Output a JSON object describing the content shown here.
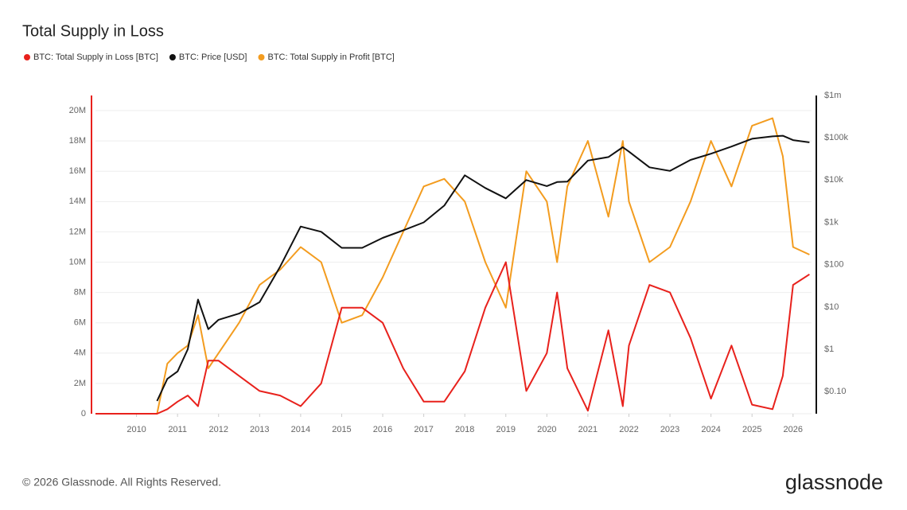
{
  "chart_data": {
    "type": "line",
    "title": "Total Supply in Loss",
    "footer": "© 2026 Glassnode. All Rights Reserved.",
    "brand": "glassnode",
    "x": [
      2009,
      2010.5,
      2010.75,
      2011,
      2011.25,
      2011.5,
      2011.75,
      2012,
      2012.5,
      2013,
      2013.5,
      2014,
      2014.5,
      2015,
      2015.5,
      2016,
      2016.5,
      2017,
      2017.5,
      2018,
      2018.5,
      2019,
      2019.5,
      2020,
      2020.25,
      2020.5,
      2021,
      2021.5,
      2021.85,
      2022,
      2022.5,
      2023,
      2023.5,
      2024,
      2024.5,
      2025,
      2025.5,
      2025.75,
      2026,
      2026.4
    ],
    "xlim": [
      2009,
      2026.45
    ],
    "xticks": [
      2010,
      2011,
      2012,
      2013,
      2014,
      2015,
      2016,
      2017,
      2018,
      2019,
      2020,
      2021,
      2022,
      2023,
      2024,
      2025,
      2026
    ],
    "ylim": [
      0,
      21000000
    ],
    "yticks": [
      0,
      {
        "value": 2000000,
        "label": "2M"
      },
      {
        "value": 4000000,
        "label": "4M"
      },
      {
        "value": 6000000,
        "label": "6M"
      },
      {
        "value": 8000000,
        "label": "8M"
      },
      {
        "value": 10000000,
        "label": "10M"
      },
      {
        "value": 12000000,
        "label": "12M"
      },
      {
        "value": 14000000,
        "label": "14M"
      },
      {
        "value": 16000000,
        "label": "16M"
      },
      {
        "value": 18000000,
        "label": "18M"
      },
      {
        "value": 20000000,
        "label": "20M"
      }
    ],
    "y2lim": [
      0.03,
      1000000
    ],
    "y2log": true,
    "y2ticks": [
      {
        "value": 0.1,
        "label": "$0.10"
      },
      {
        "value": 1,
        "label": "$1"
      },
      {
        "value": 10,
        "label": "$10"
      },
      {
        "value": 100,
        "label": "$100"
      },
      {
        "value": 1000,
        "label": "$1k"
      },
      {
        "value": 10000,
        "label": "$10k"
      },
      {
        "value": 100000,
        "label": "$100k"
      },
      {
        "value": 1000000,
        "label": "$1m"
      }
    ],
    "grid": true,
    "series": [
      {
        "name": "BTC: Total Supply in Profit [BTC]",
        "color": "#f39c1f",
        "values": [
          0,
          0,
          3300000,
          4000000,
          4500000,
          6500000,
          3000000,
          4000000,
          6000000,
          8500000,
          9500000,
          11000000,
          10000000,
          6000000,
          6500000,
          9000000,
          12000000,
          15000000,
          15500000,
          14000000,
          10000000,
          7000000,
          16000000,
          14000000,
          10000000,
          15000000,
          18000000,
          13000000,
          18000000,
          14000000,
          10000000,
          11000000,
          14000000,
          18000000,
          15000000,
          19000000,
          19500000,
          17000000,
          11000000,
          10500000
        ]
      },
      {
        "name": "BTC: Total Supply in Loss [BTC]",
        "color": "#e8211c",
        "values": [
          0,
          0,
          300000,
          800000,
          1200000,
          500000,
          3500000,
          3500000,
          2500000,
          1500000,
          1200000,
          500000,
          2000000,
          7000000,
          7000000,
          6000000,
          3000000,
          800000,
          800000,
          2800000,
          7000000,
          10000000,
          1500000,
          4000000,
          8000000,
          3000000,
          200000,
          5500000,
          500000,
          4500000,
          8500000,
          8000000,
          5000000,
          1000000,
          4500000,
          600000,
          300000,
          2500000,
          8500000,
          9200000
        ]
      },
      {
        "name": "BTC: Price [USD]",
        "color": "#111111",
        "axis": "y2",
        "values": [
          null,
          0.06,
          0.2,
          0.3,
          1,
          15,
          3,
          5,
          7,
          13,
          90,
          800,
          600,
          250,
          250,
          430,
          650,
          1000,
          2500,
          13000,
          6500,
          3700,
          10000,
          7200,
          9000,
          9200,
          29000,
          35000,
          60000,
          47000,
          20000,
          16500,
          30000,
          42000,
          62000,
          95000,
          108000,
          112000,
          88000,
          78000
        ]
      }
    ]
  }
}
